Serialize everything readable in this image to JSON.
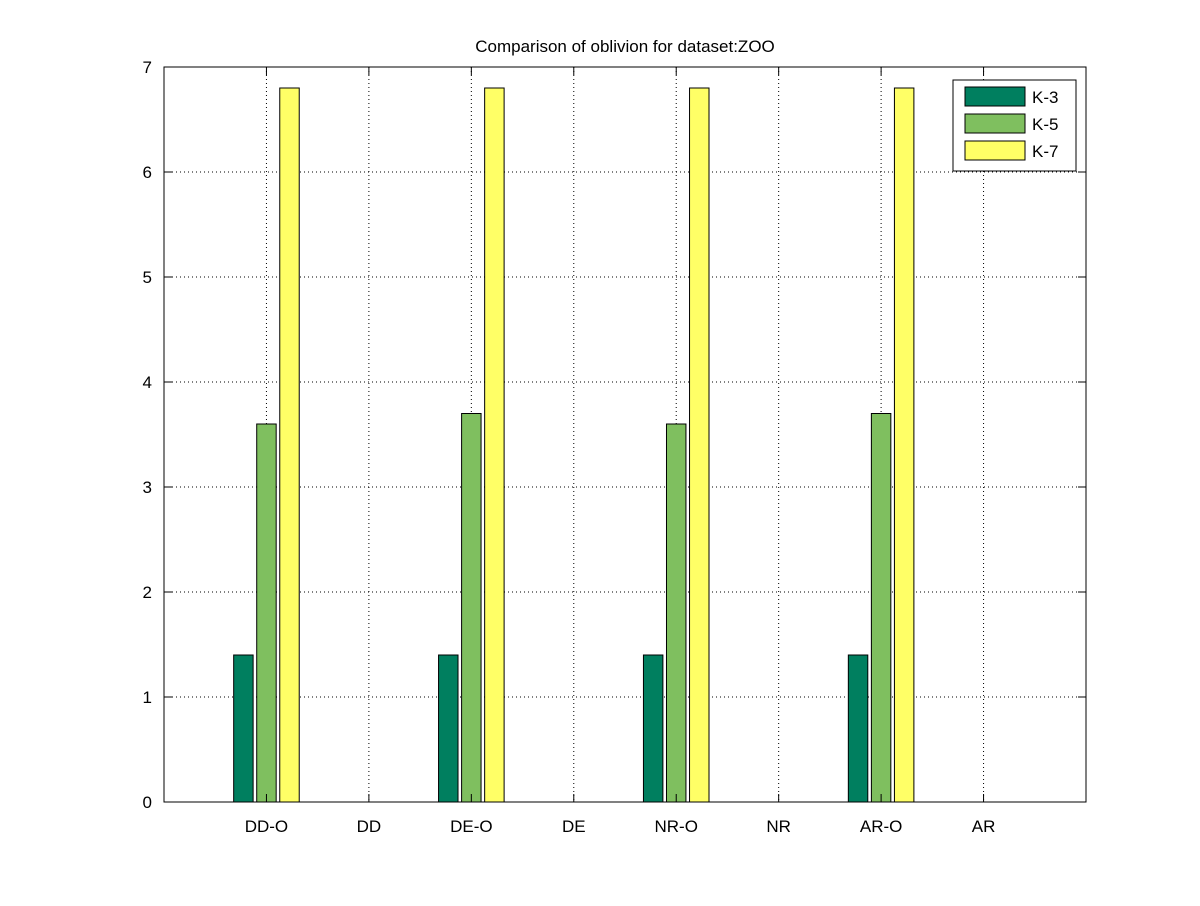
{
  "chart_data": {
    "type": "bar",
    "title": "Comparison of oblivion for dataset:ZOO",
    "xlabel": "",
    "ylabel": "",
    "categories": [
      "DD-O",
      "DD",
      "DE-O",
      "DE",
      "NR-O",
      "NR",
      "AR-O",
      "AR"
    ],
    "series": [
      {
        "name": "K-3",
        "color": "#007F5F",
        "values": [
          1.4,
          0,
          1.4,
          0,
          1.4,
          0,
          1.4,
          0
        ]
      },
      {
        "name": "K-5",
        "color": "#7FBF5F",
        "values": [
          3.6,
          0,
          3.7,
          0,
          3.6,
          0,
          3.7,
          0
        ]
      },
      {
        "name": "K-7",
        "color": "#FFFF66",
        "values": [
          6.8,
          0,
          6.8,
          0,
          6.8,
          0,
          6.8,
          0
        ]
      }
    ],
    "xlim": [
      0,
      9
    ],
    "ylim": [
      0,
      7
    ],
    "yticks": [
      0,
      1,
      2,
      3,
      4,
      5,
      6,
      7
    ],
    "grid": true,
    "legend_position": "top-right"
  }
}
